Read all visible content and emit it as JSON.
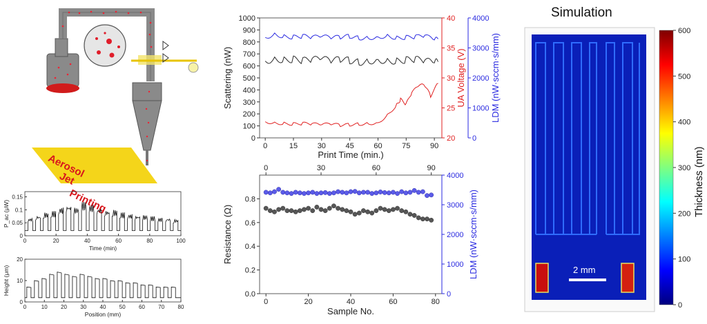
{
  "schematic": {
    "banner_lines": [
      "Aerosol",
      "Jet",
      "Printing"
    ]
  },
  "simulation": {
    "title": "Simulation",
    "scale_bar": "2 mm",
    "colorbar_label": "Thickness (nm)",
    "colorbar_ticks": [
      "0",
      "100",
      "200",
      "300",
      "400",
      "500",
      "600"
    ]
  },
  "chart_data": [
    {
      "id": "power-time",
      "type": "line",
      "xlabel": "Time (min)",
      "ylabel": "P_ac (μW)",
      "xlim": [
        0,
        100
      ],
      "ylim": [
        0,
        0.17
      ],
      "xticks": [
        0,
        20,
        40,
        60,
        80,
        100
      ],
      "yticks": [
        0,
        0.05,
        0.1,
        0.15
      ],
      "ytick_labels": [
        "0",
        "0.05",
        "0.1",
        "0.15"
      ],
      "pulses": {
        "count": 20,
        "period_min": 4.9,
        "baseline": 0.02,
        "peaks": [
          0.07,
          0.08,
          0.09,
          0.095,
          0.11,
          0.12,
          0.11,
          0.13,
          0.12,
          0.11,
          0.1,
          0.1,
          0.09,
          0.085,
          0.08,
          0.08,
          0.075,
          0.07,
          0.07,
          0.065
        ]
      }
    },
    {
      "id": "height-position",
      "type": "line",
      "xlabel": "Position (mm)",
      "ylabel": "Height (μm)",
      "xlim": [
        0,
        80
      ],
      "ylim": [
        0,
        20
      ],
      "xticks": [
        0,
        10,
        20,
        30,
        40,
        50,
        60,
        70,
        80
      ],
      "yticks": [
        0,
        10,
        20
      ],
      "steps": {
        "count": 20,
        "period_mm": 3.9,
        "baseline": 2,
        "heights": [
          7,
          10,
          11,
          13,
          14,
          13,
          12,
          13,
          12,
          11,
          11,
          10,
          10,
          9,
          9,
          8,
          8,
          7,
          7,
          7
        ]
      }
    },
    {
      "id": "scattering-time",
      "type": "line",
      "xlabel": "Print Time (min.)",
      "ylabel": "Scattering (nW)",
      "y2label": "UA Voltage (V)",
      "y3label": "LDM (nW·sccm·s/mm)",
      "xlim": [
        -3,
        94
      ],
      "ylim": [
        0,
        1000
      ],
      "y2lim": [
        20,
        40
      ],
      "y3lim": [
        0,
        4000
      ],
      "xticks": [
        0,
        15,
        30,
        45,
        60,
        75,
        90
      ],
      "yticks": [
        0,
        100,
        200,
        300,
        400,
        500,
        600,
        700,
        800,
        900,
        1000
      ],
      "y2ticks": [
        20,
        25,
        30,
        35,
        40
      ],
      "y3ticks": [
        0,
        1000,
        2000,
        3000,
        4000
      ],
      "colors": {
        "scattering": "#2b2b2b",
        "ua": "#e02020",
        "ldm": "#2a2ae0"
      },
      "series": [
        {
          "name": "Scattering",
          "axis": "left",
          "color": "#2b2b2b",
          "x": [
            0,
            5,
            10,
            15,
            20,
            25,
            30,
            35,
            40,
            45,
            50,
            55,
            60,
            65,
            70,
            75,
            80,
            85,
            90,
            92
          ],
          "y": [
            640,
            660,
            650,
            655,
            645,
            650,
            660,
            640,
            655,
            645,
            630,
            640,
            650,
            645,
            640,
            650,
            655,
            640,
            630,
            635
          ]
        },
        {
          "name": "UA Voltage",
          "axis": "right",
          "color": "#e02020",
          "x": [
            0,
            5,
            10,
            15,
            20,
            25,
            30,
            35,
            40,
            45,
            50,
            55,
            60,
            65,
            70,
            72,
            75,
            78,
            82,
            85,
            88,
            92
          ],
          "y": [
            22.7,
            22.5,
            22.4,
            22.3,
            22.4,
            22.3,
            22.2,
            22.3,
            22.1,
            22.2,
            22.3,
            22.4,
            22.5,
            23.8,
            25.5,
            26.4,
            25.6,
            27.5,
            28.8,
            28.7,
            27.0,
            29.1
          ]
        },
        {
          "name": "LDM",
          "axis": "right2",
          "color": "#2a2ae0",
          "x": [
            0,
            5,
            10,
            15,
            20,
            25,
            30,
            35,
            40,
            45,
            50,
            55,
            60,
            65,
            70,
            75,
            80,
            85,
            90,
            92
          ],
          "y": [
            3350,
            3460,
            3380,
            3360,
            3390,
            3350,
            3380,
            3340,
            3360,
            3390,
            3330,
            3340,
            3360,
            3410,
            3330,
            3350,
            3370,
            3400,
            3280,
            3300
          ]
        }
      ]
    },
    {
      "id": "resistance-sample",
      "type": "scatter",
      "xlabel": "Sample No.",
      "ylabel": "Resistance (Ω)",
      "y2label": "LDM (nW·sccm·s/mm)",
      "xlim": [
        -3,
        83
      ],
      "ylim": [
        0,
        1.0
      ],
      "y2lim": [
        0,
        4000
      ],
      "xticks": [
        0,
        20,
        40,
        60,
        80
      ],
      "top_xticks": [
        0,
        30,
        60,
        90
      ],
      "yticks": [
        0,
        0.2,
        0.4,
        0.6,
        0.8
      ],
      "ytick_labels": [
        "0.0",
        "0.2",
        "0.4",
        "0.6",
        "0.8"
      ],
      "y2ticks": [
        0,
        1000,
        2000,
        3000,
        4000
      ],
      "series": [
        {
          "name": "Resistance",
          "axis": "left",
          "color": "#444444",
          "x": [
            0,
            2,
            4,
            6,
            8,
            10,
            12,
            14,
            16,
            18,
            20,
            22,
            24,
            26,
            28,
            30,
            32,
            34,
            36,
            38,
            40,
            42,
            44,
            46,
            48,
            50,
            52,
            54,
            56,
            58,
            60,
            62,
            64,
            66,
            68,
            70,
            72,
            74,
            76,
            78
          ],
          "y": [
            0.72,
            0.7,
            0.69,
            0.71,
            0.72,
            0.7,
            0.7,
            0.69,
            0.7,
            0.71,
            0.72,
            0.7,
            0.73,
            0.71,
            0.7,
            0.72,
            0.74,
            0.72,
            0.71,
            0.7,
            0.69,
            0.67,
            0.68,
            0.7,
            0.69,
            0.68,
            0.7,
            0.72,
            0.71,
            0.7,
            0.71,
            0.72,
            0.7,
            0.69,
            0.67,
            0.66,
            0.64,
            0.63,
            0.63,
            0.62
          ]
        },
        {
          "name": "LDM",
          "axis": "right",
          "color": "#4a4ae6",
          "x": [
            0,
            2,
            4,
            6,
            8,
            10,
            12,
            14,
            16,
            18,
            20,
            22,
            24,
            26,
            28,
            30,
            32,
            34,
            36,
            38,
            40,
            42,
            44,
            46,
            48,
            50,
            52,
            54,
            56,
            58,
            60,
            62,
            64,
            66,
            68,
            70,
            72,
            74,
            76,
            78
          ],
          "y": [
            3420,
            3400,
            3440,
            3520,
            3420,
            3400,
            3380,
            3420,
            3400,
            3380,
            3400,
            3420,
            3380,
            3400,
            3410,
            3380,
            3400,
            3440,
            3420,
            3400,
            3440,
            3450,
            3400,
            3420,
            3420,
            3380,
            3400,
            3430,
            3410,
            3400,
            3420,
            3380,
            3440,
            3400,
            3420,
            3480,
            3420,
            3440,
            3310,
            3330
          ]
        }
      ]
    }
  ]
}
